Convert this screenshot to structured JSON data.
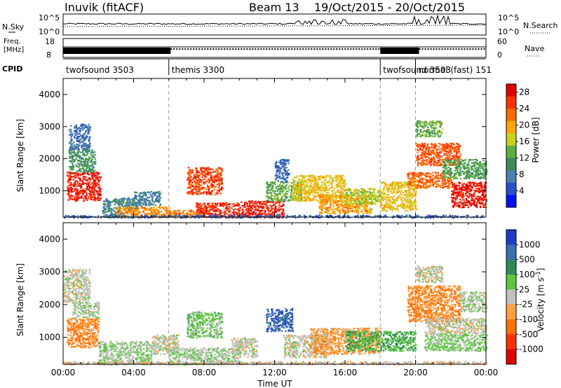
{
  "header": {
    "station": "Inuvik (fitACF)",
    "beam": "Beam 13",
    "date_range": "19/Oct/2015 - 20/Oct/2015"
  },
  "strip_labels": {
    "nsky": "N.Sky",
    "nsky_ticks": [
      "10^5",
      "10^0"
    ],
    "nsearch": "N.Search",
    "nsearch_ticks": [
      "10^5",
      "10^0"
    ],
    "freq_line1": "Freq.",
    "freq_line2": "[MHz]",
    "freq_ticks": [
      "18",
      "8"
    ],
    "nave": "Nave",
    "nave_ticks": [
      "60",
      "0"
    ],
    "cpid": "CPID"
  },
  "cpid_segments": [
    {
      "start_hour": 0,
      "label": "twofsound 3503"
    },
    {
      "start_hour": 6,
      "label": "themis 3300"
    },
    {
      "start_hour": 18,
      "label": "twofsound 3503"
    },
    {
      "start_hour": 20,
      "label": "normal (fast) 151"
    }
  ],
  "chart_data": [
    {
      "type": "heatmap",
      "title": "",
      "xlabel": "",
      "ylabel": "Slant Range [km]",
      "xlim": [
        0,
        24
      ],
      "ylim": [
        180,
        4500
      ],
      "yticks": [
        "1000",
        "2000",
        "3000",
        "4000"
      ],
      "colorbar": {
        "label": "Power [dB]",
        "ticks": [
          "4",
          "8",
          "12",
          "16",
          "20",
          "24",
          "28"
        ],
        "range": [
          0,
          30
        ],
        "colors": [
          "#0010ff",
          "#2a4fc8",
          "#4a7fb0",
          "#3c8a5a",
          "#5ab040",
          "#c8d21e",
          "#ffa500",
          "#ff6a00",
          "#ff3000",
          "#e00000"
        ]
      },
      "regions": [
        {
          "t": [
            0.2,
            2.1
          ],
          "r": [
            700,
            1600
          ],
          "v": 27
        },
        {
          "t": [
            0.3,
            1.8
          ],
          "r": [
            1600,
            2300
          ],
          "v": 11
        },
        {
          "t": [
            0.3,
            1.5
          ],
          "r": [
            2300,
            3100
          ],
          "v": 7
        },
        {
          "t": [
            2.2,
            4.2
          ],
          "r": [
            180,
            800
          ],
          "v": 9
        },
        {
          "t": [
            3.0,
            6.0
          ],
          "r": [
            180,
            520
          ],
          "v": 21
        },
        {
          "t": [
            4.0,
            5.5
          ],
          "r": [
            550,
            1000
          ],
          "v": 8
        },
        {
          "t": [
            6.0,
            8.0
          ],
          "r": [
            180,
            420
          ],
          "v": 22
        },
        {
          "t": [
            7.0,
            9.0
          ],
          "r": [
            900,
            1750
          ],
          "v": 25
        },
        {
          "t": [
            7.5,
            10.0
          ],
          "r": [
            180,
            650
          ],
          "v": 26
        },
        {
          "t": [
            10.0,
            12.5
          ],
          "r": [
            180,
            700
          ],
          "v": 27
        },
        {
          "t": [
            11.5,
            13.5
          ],
          "r": [
            700,
            1300
          ],
          "v": 13
        },
        {
          "t": [
            12.0,
            12.8
          ],
          "r": [
            1300,
            2000
          ],
          "v": 6
        },
        {
          "t": [
            13.0,
            16.0
          ],
          "r": [
            700,
            1500
          ],
          "v": 18
        },
        {
          "t": [
            14.5,
            17.5
          ],
          "r": [
            300,
            900
          ],
          "v": 20
        },
        {
          "t": [
            16.0,
            18.0
          ],
          "r": [
            600,
            1100
          ],
          "v": 16
        },
        {
          "t": [
            18.0,
            20.0
          ],
          "r": [
            400,
            1300
          ],
          "v": 18
        },
        {
          "t": [
            19.5,
            22.0
          ],
          "r": [
            1100,
            1600
          ],
          "v": 23
        },
        {
          "t": [
            20.0,
            22.5
          ],
          "r": [
            1800,
            2500
          ],
          "v": 24
        },
        {
          "t": [
            20.0,
            21.5
          ],
          "r": [
            2700,
            3200
          ],
          "v": 13
        },
        {
          "t": [
            22.0,
            24.0
          ],
          "r": [
            500,
            1300
          ],
          "v": 28
        },
        {
          "t": [
            21.5,
            24.0
          ],
          "r": [
            1400,
            2000
          ],
          "v": 12
        },
        {
          "t": [
            0.0,
            24.0
          ],
          "r": [
            180,
            260
          ],
          "v": 6
        }
      ]
    },
    {
      "type": "heatmap",
      "title": "",
      "xlabel": "Time UT",
      "ylabel": "Slant Range [km]",
      "xlim": [
        0,
        24
      ],
      "ylim": [
        180,
        4500
      ],
      "xticks": [
        "00:00",
        "04:00",
        "08:00",
        "12:00",
        "16:00",
        "20:00",
        "00:00"
      ],
      "yticks": [
        "1000",
        "2000",
        "3000",
        "4000"
      ],
      "colorbar": {
        "label": "Velocity [m s^-1]",
        "ticks": [
          "1000",
          "500",
          "100",
          "25",
          "-25",
          "-100",
          "-500",
          "-1000"
        ],
        "range": [
          -1000,
          1000
        ],
        "colors": [
          "#e00000",
          "#ff3000",
          "#ff7000",
          "#ffa040",
          "#c0c0c0",
          "#5ac83c",
          "#2e8b57",
          "#3c6eb4",
          "#1e3cc8"
        ]
      },
      "regions": [
        {
          "t": [
            0.0,
            1.5
          ],
          "r": [
            2100,
            3100
          ],
          "v": 0
        },
        {
          "t": [
            0.2,
            2.0
          ],
          "r": [
            700,
            1600
          ],
          "v": -350
        },
        {
          "t": [
            0.5,
            2.0
          ],
          "r": [
            1600,
            2100
          ],
          "v": 60
        },
        {
          "t": [
            2.0,
            5.0
          ],
          "r": [
            180,
            900
          ],
          "v": 80
        },
        {
          "t": [
            5.0,
            6.5
          ],
          "r": [
            500,
            1100
          ],
          "v": 0
        },
        {
          "t": [
            6.0,
            10.0
          ],
          "r": [
            180,
            700
          ],
          "v": 80
        },
        {
          "t": [
            7.0,
            9.0
          ],
          "r": [
            1000,
            1800
          ],
          "v": 200
        },
        {
          "t": [
            9.5,
            11.0
          ],
          "r": [
            400,
            1000
          ],
          "v": 0
        },
        {
          "t": [
            11.5,
            13.0
          ],
          "r": [
            1200,
            1900
          ],
          "v": 700
        },
        {
          "t": [
            12.5,
            15.0
          ],
          "r": [
            400,
            1100
          ],
          "v": 0
        },
        {
          "t": [
            14.0,
            18.0
          ],
          "r": [
            500,
            1300
          ],
          "v": -250
        },
        {
          "t": [
            16.0,
            20.0
          ],
          "r": [
            600,
            1200
          ],
          "v": 300
        },
        {
          "t": [
            19.5,
            22.5
          ],
          "r": [
            1500,
            2600
          ],
          "v": -350
        },
        {
          "t": [
            20.0,
            21.5
          ],
          "r": [
            2700,
            3200
          ],
          "v": 0
        },
        {
          "t": [
            20.5,
            24.0
          ],
          "r": [
            1100,
            1600
          ],
          "v": 0
        },
        {
          "t": [
            20.5,
            24.0
          ],
          "r": [
            600,
            1100
          ],
          "v": 150
        },
        {
          "t": [
            22.5,
            24.0
          ],
          "r": [
            1800,
            2400
          ],
          "v": 60
        },
        {
          "t": [
            0.0,
            24.0
          ],
          "r": [
            180,
            280
          ],
          "v": -60
        }
      ]
    }
  ]
}
